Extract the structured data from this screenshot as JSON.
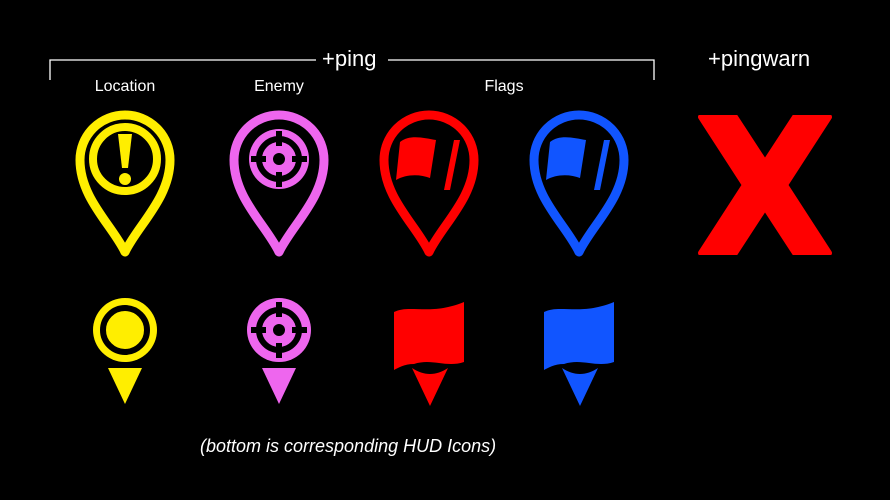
{
  "header": {
    "ping": "+ping",
    "pingwarn": "+pingwarn"
  },
  "columns": [
    {
      "label": "Location"
    },
    {
      "label": "Enemy"
    },
    {
      "label": "Flags"
    }
  ],
  "caption": "(bottom is corresponding HUD Icons)",
  "colors": {
    "location": "#ffee00",
    "enemy": "#ee66ee",
    "flag_red": "#ff0000",
    "flag_blue": "#1155ff",
    "warn": "#ff0000"
  },
  "icons": [
    "location-pin-icon",
    "enemy-crosshair-pin-icon",
    "red-flag-pin-icon",
    "blue-flag-pin-icon",
    "warning-x-icon",
    "location-hud-icon",
    "enemy-crosshair-hud-icon",
    "red-flag-hud-icon",
    "blue-flag-hud-icon"
  ]
}
